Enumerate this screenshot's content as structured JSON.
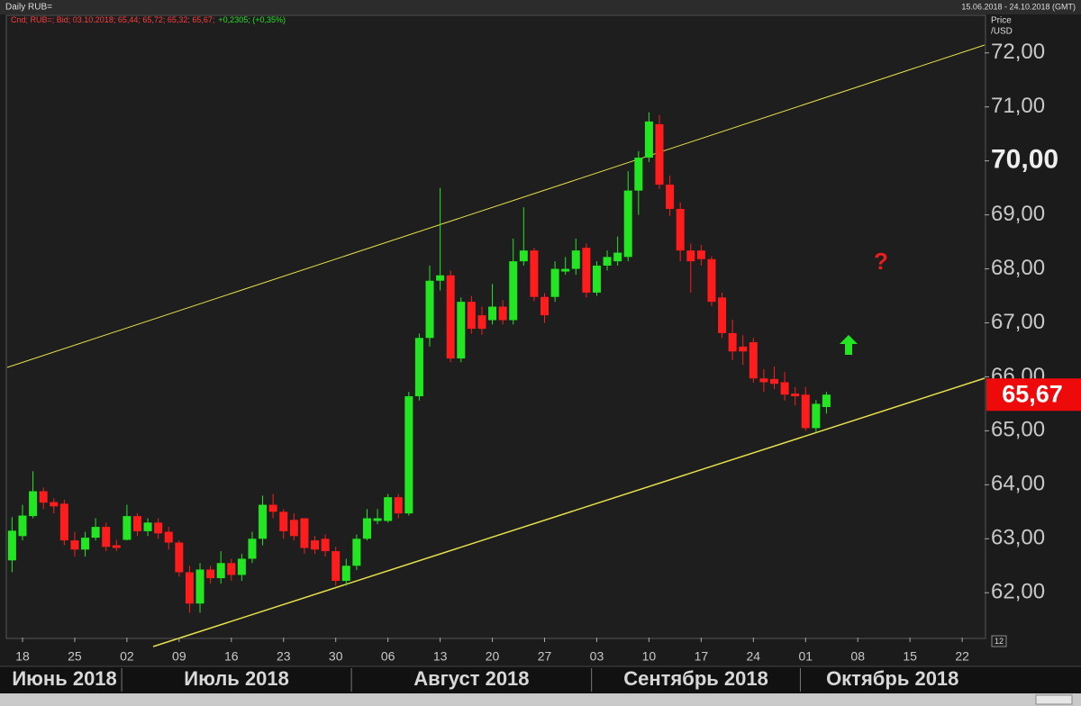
{
  "chart_data": {
    "type": "candlestick",
    "title": "Daily RUB=",
    "date_range": "15.06.2018 - 24.10.2018 (GMT)",
    "ylabel": "Price",
    "yunit": "/USD",
    "legend": {
      "text": "Cnd; RUB=; Bid; 03.10.2018; 65,44; 65,72; 65,32; 65,67;",
      "change": "+0,2305; (+0,35%)"
    },
    "up_color": "#22e622",
    "down_color": "#ff1c1c",
    "x": [
      "2018-06-15",
      "2018-06-18",
      "2018-06-19",
      "2018-06-20",
      "2018-06-21",
      "2018-06-22",
      "2018-06-25",
      "2018-06-26",
      "2018-06-27",
      "2018-06-28",
      "2018-06-29",
      "2018-07-02",
      "2018-07-03",
      "2018-07-04",
      "2018-07-05",
      "2018-07-06",
      "2018-07-09",
      "2018-07-10",
      "2018-07-11",
      "2018-07-12",
      "2018-07-13",
      "2018-07-16",
      "2018-07-17",
      "2018-07-18",
      "2018-07-19",
      "2018-07-20",
      "2018-07-23",
      "2018-07-24",
      "2018-07-25",
      "2018-07-26",
      "2018-07-27",
      "2018-07-30",
      "2018-07-31",
      "2018-08-01",
      "2018-08-02",
      "2018-08-03",
      "2018-08-06",
      "2018-08-07",
      "2018-08-08",
      "2018-08-09",
      "2018-08-10",
      "2018-08-13",
      "2018-08-14",
      "2018-08-15",
      "2018-08-16",
      "2018-08-17",
      "2018-08-20",
      "2018-08-21",
      "2018-08-22",
      "2018-08-23",
      "2018-08-24",
      "2018-08-27",
      "2018-08-28",
      "2018-08-29",
      "2018-08-30",
      "2018-08-31",
      "2018-09-03",
      "2018-09-04",
      "2018-09-05",
      "2018-09-06",
      "2018-09-07",
      "2018-09-10",
      "2018-09-11",
      "2018-09-12",
      "2018-09-13",
      "2018-09-14",
      "2018-09-17",
      "2018-09-18",
      "2018-09-19",
      "2018-09-20",
      "2018-09-21",
      "2018-09-24",
      "2018-09-25",
      "2018-09-26",
      "2018-09-27",
      "2018-09-28",
      "2018-10-01",
      "2018-10-02",
      "2018-10-03"
    ],
    "open": [
      62.6,
      63.05,
      63.42,
      63.88,
      63.68,
      63.65,
      62.97,
      62.8,
      63.02,
      63.22,
      62.88,
      62.98,
      63.42,
      63.14,
      63.3,
      63.13,
      62.93,
      62.38,
      61.8,
      62.43,
      62.27,
      62.55,
      62.33,
      62.63,
      63.0,
      63.63,
      63.5,
      63.35,
      63.38,
      62.97,
      63.0,
      62.77,
      62.22,
      62.5,
      63.0,
      63.33,
      63.33,
      63.77,
      63.47,
      65.64,
      66.72,
      67.78,
      67.88,
      66.34,
      67.39,
      67.14,
      67.05,
      67.3,
      67.05,
      68.14,
      68.34,
      67.48,
      67.48,
      67.95,
      68.0,
      68.39,
      67.56,
      68.06,
      68.14,
      68.22,
      69.45,
      70.06,
      70.68,
      69.56,
      69.11,
      68.34,
      68.34,
      68.18,
      67.47,
      66.81,
      66.56,
      66.64,
      65.97,
      65.96,
      65.9,
      65.69,
      65.67,
      65.05,
      65.44
    ],
    "high": [
      63.4,
      63.63,
      64.25,
      63.95,
      63.75,
      63.72,
      63.13,
      63.13,
      63.38,
      63.3,
      62.98,
      63.63,
      63.47,
      63.38,
      63.38,
      63.22,
      62.97,
      62.5,
      62.55,
      62.5,
      62.77,
      62.63,
      62.72,
      63.13,
      63.8,
      63.83,
      63.55,
      63.47,
      63.38,
      63.05,
      63.08,
      62.85,
      62.63,
      63.08,
      63.55,
      63.55,
      63.83,
      63.83,
      65.72,
      66.8,
      68.06,
      69.5,
      67.97,
      67.47,
      67.5,
      67.3,
      67.72,
      67.42,
      68.56,
      69.14,
      68.39,
      67.55,
      68.14,
      68.22,
      68.56,
      68.47,
      68.14,
      68.34,
      68.6,
      69.81,
      70.18,
      70.9,
      70.85,
      69.73,
      69.23,
      68.47,
      68.44,
      68.23,
      67.56,
      67.06,
      66.77,
      66.72,
      66.14,
      66.19,
      66.09,
      65.81,
      65.81,
      65.57,
      65.72
    ],
    "low": [
      62.38,
      62.97,
      63.38,
      63.55,
      63.47,
      62.88,
      62.67,
      62.67,
      62.97,
      62.77,
      62.77,
      62.97,
      63.05,
      63.05,
      63.0,
      62.8,
      62.3,
      61.63,
      61.63,
      62.17,
      62.17,
      62.22,
      62.22,
      62.55,
      62.88,
      63.38,
      63.0,
      62.97,
      62.72,
      62.72,
      62.67,
      62.13,
      62.13,
      62.42,
      62.97,
      63.27,
      63.3,
      63.38,
      63.43,
      65.56,
      66.56,
      67.6,
      66.27,
      66.27,
      66.8,
      66.78,
      66.97,
      66.97,
      66.97,
      68.06,
      67.4,
      67.0,
      67.39,
      67.89,
      67.89,
      67.47,
      67.5,
      67.97,
      68.06,
      68.14,
      69.0,
      69.98,
      69.48,
      68.98,
      68.14,
      67.56,
      68.06,
      67.31,
      66.72,
      66.31,
      66.22,
      65.89,
      65.72,
      65.77,
      65.56,
      65.47,
      65.0,
      64.97,
      65.32
    ],
    "close": [
      63.15,
      63.43,
      63.88,
      63.67,
      63.6,
      62.97,
      62.8,
      63.02,
      63.22,
      62.85,
      62.83,
      63.42,
      63.14,
      63.3,
      63.1,
      62.93,
      62.38,
      61.8,
      62.43,
      62.27,
      62.55,
      62.33,
      62.63,
      63.0,
      63.63,
      63.5,
      63.14,
      63.05,
      62.83,
      62.8,
      62.77,
      62.22,
      62.5,
      63.0,
      63.38,
      63.38,
      63.77,
      63.47,
      65.64,
      66.72,
      67.78,
      67.88,
      66.34,
      67.39,
      66.89,
      66.89,
      67.3,
      67.05,
      68.14,
      68.34,
      67.48,
      67.14,
      68.0,
      68.0,
      68.34,
      67.56,
      68.06,
      68.22,
      68.3,
      69.45,
      70.06,
      70.73,
      69.56,
      69.11,
      68.34,
      68.14,
      68.18,
      67.39,
      66.81,
      66.47,
      66.47,
      65.97,
      65.9,
      65.87,
      65.67,
      65.64,
      65.05,
      65.5,
      65.67
    ],
    "xlim": [
      "2018-06-15",
      "2018-10-24"
    ],
    "xticks": [
      {
        "value": "2018-06-18",
        "label": "18"
      },
      {
        "value": "2018-06-25",
        "label": "25"
      },
      {
        "value": "2018-07-02",
        "label": "02"
      },
      {
        "value": "2018-07-09",
        "label": "09"
      },
      {
        "value": "2018-07-16",
        "label": "16"
      },
      {
        "value": "2018-07-23",
        "label": "23"
      },
      {
        "value": "2018-07-30",
        "label": "30"
      },
      {
        "value": "2018-08-06",
        "label": "06"
      },
      {
        "value": "2018-08-13",
        "label": "13"
      },
      {
        "value": "2018-08-20",
        "label": "20"
      },
      {
        "value": "2018-08-27",
        "label": "27"
      },
      {
        "value": "2018-09-03",
        "label": "03"
      },
      {
        "value": "2018-09-10",
        "label": "10"
      },
      {
        "value": "2018-09-17",
        "label": "17"
      },
      {
        "value": "2018-09-24",
        "label": "24"
      },
      {
        "value": "2018-10-01",
        "label": "01"
      },
      {
        "value": "2018-10-08",
        "label": "08"
      },
      {
        "value": "2018-10-15",
        "label": "15"
      },
      {
        "value": "2018-10-22",
        "label": "22"
      }
    ],
    "months": [
      {
        "value": "2018-06",
        "label": "Июнь 2018"
      },
      {
        "value": "2018-07",
        "label": "Июль 2018"
      },
      {
        "value": "2018-08",
        "label": "Август 2018"
      },
      {
        "value": "2018-09",
        "label": "Сентябрь 2018"
      },
      {
        "value": "2018-10",
        "label": "Октябрь 2018"
      }
    ],
    "ylim": [
      61.17,
      72.68
    ],
    "yticks": [
      {
        "value": 62,
        "label": "62,00"
      },
      {
        "value": 63,
        "label": "63,00"
      },
      {
        "value": 64,
        "label": "64,00"
      },
      {
        "value": 65,
        "label": "65,00"
      },
      {
        "value": 66,
        "label": "66,00"
      },
      {
        "value": 67,
        "label": "67,00"
      },
      {
        "value": 68,
        "label": "68,00"
      },
      {
        "value": 69,
        "label": "69,00"
      },
      {
        "value": 70,
        "label": "70,00"
      },
      {
        "value": 71,
        "label": "71,00"
      },
      {
        "value": 72,
        "label": "72,00"
      }
    ],
    "bold_ytick": 70,
    "last_price": {
      "value": 65.67,
      "label": "65,67"
    },
    "annotation": "?",
    "corner_label": "12"
  }
}
